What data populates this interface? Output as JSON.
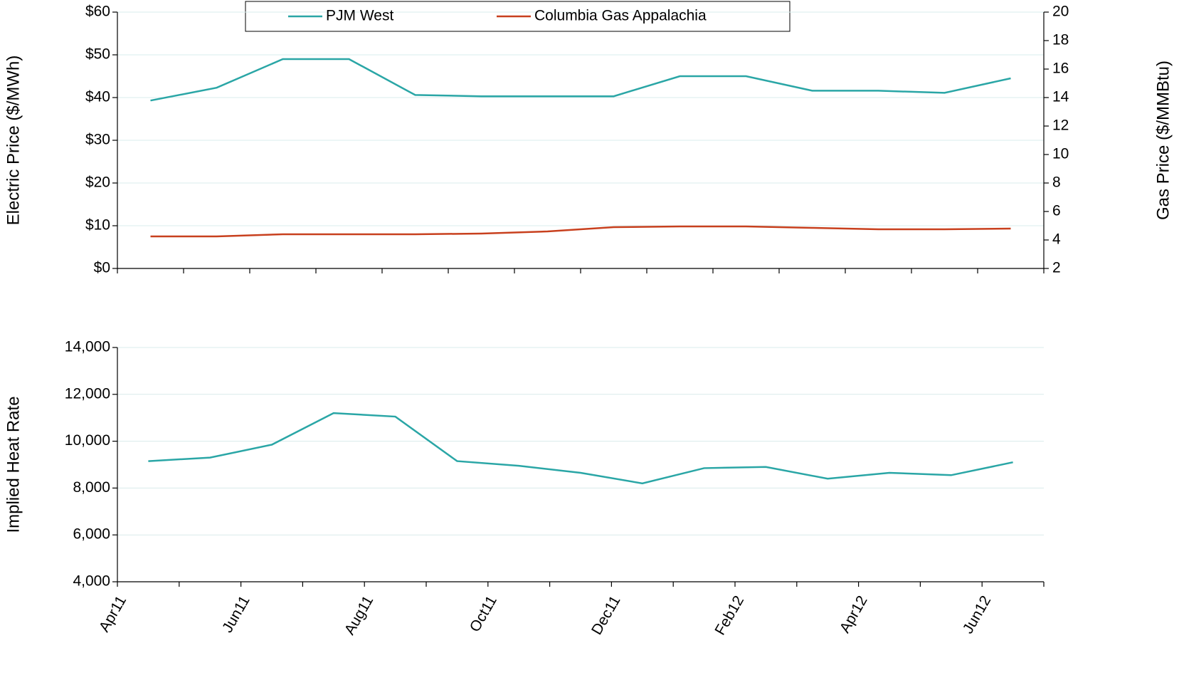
{
  "chart_data": [
    {
      "type": "line",
      "y_label": "Electric Price ($/MWh)",
      "y2_label": "Gas Price ($/MMBtu)",
      "categories": [
        null,
        null,
        null,
        null,
        null,
        null,
        null,
        null,
        null,
        null,
        null,
        null,
        null,
        null
      ],
      "series": [
        {
          "name": "PJM West",
          "color": "#2aa6a6",
          "values": [
            39.3,
            42.3,
            49,
            49,
            40.6,
            40.3,
            40.3,
            40.3,
            45,
            45,
            41.6,
            41.6,
            41.1,
            44.5
          ]
        },
        {
          "name": "Columbia Gas Appalachia",
          "color": "#c8401e",
          "axis": "y2",
          "values": [
            4.25,
            4.25,
            4.4,
            4.4,
            4.4,
            4.45,
            4.6,
            4.9,
            4.95,
            4.95,
            4.85,
            4.75,
            4.75,
            4.8
          ]
        }
      ],
      "ylim": [
        0,
        60
      ],
      "yticks": [
        {
          "value": 0,
          "label": "$0"
        },
        {
          "value": 10,
          "label": "$10"
        },
        {
          "value": 20,
          "label": "$20"
        },
        {
          "value": 30,
          "label": "$30"
        },
        {
          "value": 40,
          "label": "$40"
        },
        {
          "value": 50,
          "label": "$50"
        },
        {
          "value": 60,
          "label": "$60"
        }
      ],
      "y2lim": [
        2,
        20
      ],
      "y2ticks": [
        2,
        4,
        6,
        8,
        10,
        12,
        14,
        16,
        18,
        20
      ],
      "grid": true
    },
    {
      "type": "line",
      "y_label": "Implied Heat Rate",
      "categories": [
        "Apr11",
        null,
        "Jun11",
        null,
        "Aug11",
        null,
        "Oct11",
        null,
        "Dec11",
        null,
        "Feb12",
        null,
        "Apr12",
        null,
        "Jun12"
      ],
      "series": [
        {
          "color": "#2aa6a6",
          "values": [
            9150,
            9300,
            9850,
            11200,
            11050,
            9150,
            8950,
            8650,
            8200,
            8850,
            8900,
            8400,
            8650,
            8550,
            9100
          ]
        }
      ],
      "ylim": [
        4000,
        14000
      ],
      "yticks": [
        {
          "value": 4000,
          "label": "4,000"
        },
        {
          "value": 6000,
          "label": "6,000"
        },
        {
          "value": 8000,
          "label": "8,000"
        },
        {
          "value": 10000,
          "label": "10,000"
        },
        {
          "value": 12000,
          "label": "12,000"
        },
        {
          "value": 14000,
          "label": "14,000"
        }
      ],
      "grid": true
    }
  ]
}
